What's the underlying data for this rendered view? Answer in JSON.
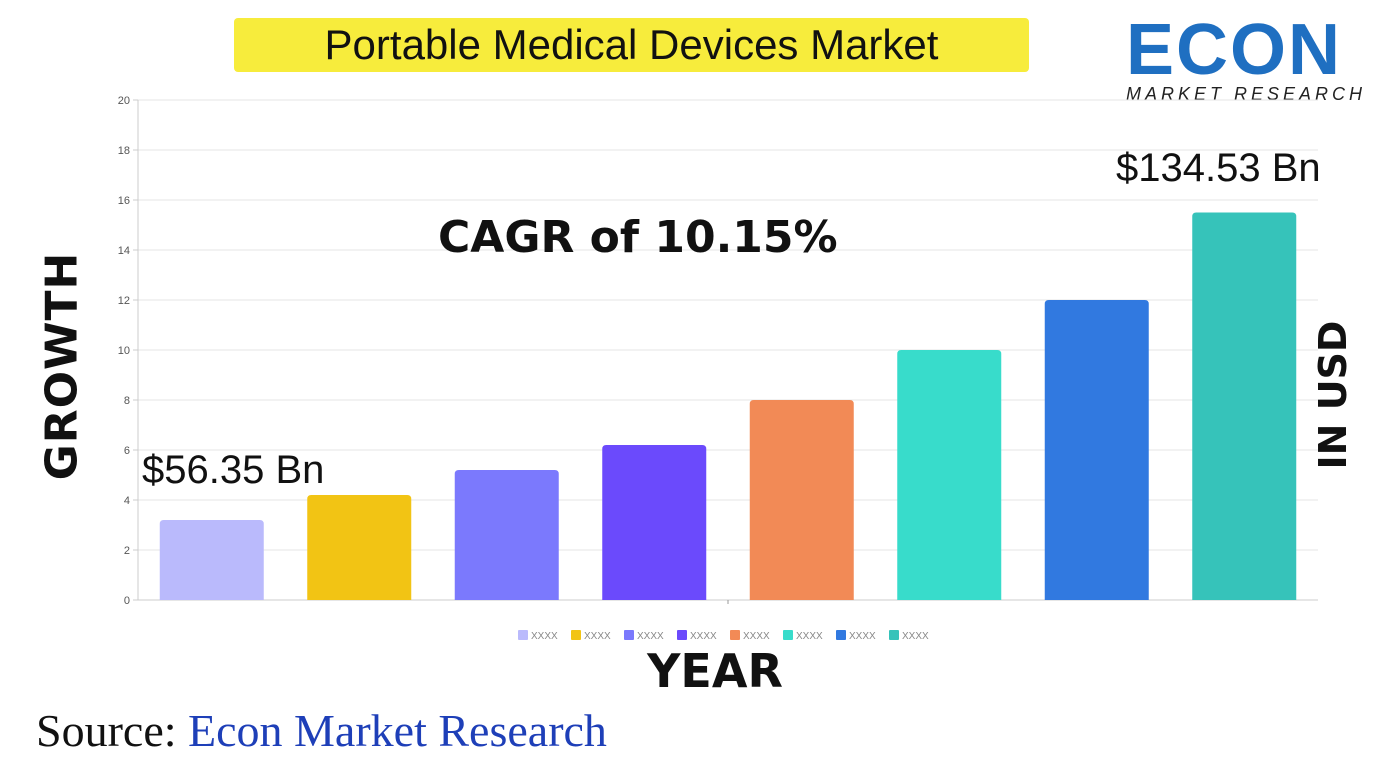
{
  "title": "Portable Medical Devices Market",
  "logo": {
    "main": "ECON",
    "sub": "MARKET RESEARCH"
  },
  "source": {
    "label": "Source:",
    "value": " Econ Market Research"
  },
  "chart_data": {
    "type": "bar",
    "ylabel": "GROWTH",
    "ylabel_right": "IN USD",
    "xlabel": "YEAR",
    "ylim": [
      0,
      20
    ],
    "yticks": [
      0,
      2,
      4,
      6,
      8,
      10,
      12,
      14,
      16,
      18,
      20
    ],
    "grid": true,
    "legend_position": "bottom",
    "annotations": {
      "cagr": "CAGR of 10.15%",
      "start_value": "$56.35 Bn",
      "end_value": "$134.53 Bn"
    },
    "series": [
      {
        "name": "XXXX",
        "value": 3.2,
        "color": "#babafc"
      },
      {
        "name": "XXXX",
        "value": 4.2,
        "color": "#f2c414"
      },
      {
        "name": "XXXX",
        "value": 5.2,
        "color": "#7b79fd"
      },
      {
        "name": "XXXX",
        "value": 6.2,
        "color": "#6b4afc"
      },
      {
        "name": "XXXX",
        "value": 8.0,
        "color": "#f28a56"
      },
      {
        "name": "XXXX",
        "value": 10.0,
        "color": "#38dccb"
      },
      {
        "name": "XXXX",
        "value": 12.0,
        "color": "#3179e0"
      },
      {
        "name": "XXXX",
        "value": 15.5,
        "color": "#36c3ba"
      }
    ]
  }
}
